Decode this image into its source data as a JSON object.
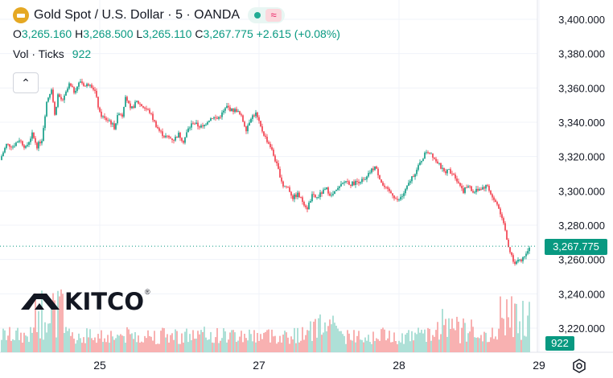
{
  "header": {
    "title": "Gold Spot / U.S. Dollar · 5 · OANDA",
    "ohlc": [
      {
        "k": "O",
        "v": "3,265.160"
      },
      {
        "k": "H",
        "v": "3,268.500"
      },
      {
        "k": "L",
        "v": "3,265.110"
      },
      {
        "k": "C",
        "v": "3,267.775"
      }
    ],
    "change": "+2.615 (+0.08%)",
    "volume_label": "Vol · Ticks",
    "volume_value": "922"
  },
  "price_tag": "3,267.775",
  "volume_tag": "922",
  "logo": {
    "text": "KITCO",
    "mark": "®"
  },
  "colors": {
    "up": "#089981",
    "down": "#f23645",
    "vol_up": "#a6dcd3",
    "vol_down": "#f7a9a9",
    "grid": "#f0f3fa",
    "text": "#131722"
  },
  "chart_data": {
    "type": "candlestick",
    "y_axis": {
      "ticks": [
        "3,220.000",
        "3,240.000",
        "3,260.000",
        "3,280.000",
        "3,300.000",
        "3,320.000",
        "3,340.000",
        "3,360.000",
        "3,380.000",
        "3,400.000"
      ],
      "range": [
        3210,
        3405
      ]
    },
    "x_axis": {
      "ticks": [
        "25",
        "27",
        "28",
        "29"
      ]
    },
    "last_price": 3267.775,
    "price_path": [
      [
        0,
        3318
      ],
      [
        8,
        3327
      ],
      [
        16,
        3326
      ],
      [
        24,
        3330
      ],
      [
        32,
        3325
      ],
      [
        40,
        3333
      ],
      [
        46,
        3326
      ],
      [
        52,
        3330
      ],
      [
        58,
        3352
      ],
      [
        64,
        3360
      ],
      [
        68,
        3344
      ],
      [
        72,
        3356
      ],
      [
        78,
        3352
      ],
      [
        86,
        3362
      ],
      [
        92,
        3358
      ],
      [
        100,
        3364
      ],
      [
        106,
        3361
      ],
      [
        112,
        3363
      ],
      [
        118,
        3358
      ],
      [
        124,
        3345
      ],
      [
        130,
        3342
      ],
      [
        136,
        3341
      ],
      [
        142,
        3337
      ],
      [
        148,
        3346
      ],
      [
        152,
        3344
      ],
      [
        156,
        3356
      ],
      [
        162,
        3347
      ],
      [
        170,
        3352
      ],
      [
        178,
        3349
      ],
      [
        186,
        3346
      ],
      [
        192,
        3340
      ],
      [
        198,
        3335
      ],
      [
        204,
        3332
      ],
      [
        210,
        3331
      ],
      [
        216,
        3330
      ],
      [
        222,
        3333
      ],
      [
        228,
        3329
      ],
      [
        234,
        3336
      ],
      [
        240,
        3340
      ],
      [
        246,
        3338
      ],
      [
        252,
        3337
      ],
      [
        258,
        3341
      ],
      [
        264,
        3343
      ],
      [
        270,
        3342
      ],
      [
        276,
        3345
      ],
      [
        282,
        3349
      ],
      [
        288,
        3347
      ],
      [
        294,
        3347
      ],
      [
        300,
        3343
      ],
      [
        306,
        3336
      ],
      [
        312,
        3343
      ],
      [
        318,
        3345
      ],
      [
        324,
        3337
      ],
      [
        330,
        3331
      ],
      [
        336,
        3326
      ],
      [
        342,
        3318
      ],
      [
        348,
        3309
      ],
      [
        352,
        3303
      ],
      [
        358,
        3302
      ],
      [
        364,
        3296
      ],
      [
        370,
        3298
      ],
      [
        376,
        3294
      ],
      [
        382,
        3290
      ],
      [
        388,
        3297
      ],
      [
        394,
        3296
      ],
      [
        400,
        3299
      ],
      [
        406,
        3301
      ],
      [
        412,
        3297
      ],
      [
        418,
        3300
      ],
      [
        424,
        3303
      ],
      [
        430,
        3306
      ],
      [
        436,
        3304
      ],
      [
        442,
        3305
      ],
      [
        448,
        3306
      ],
      [
        454,
        3306
      ],
      [
        460,
        3311
      ],
      [
        466,
        3314
      ],
      [
        470,
        3310
      ],
      [
        476,
        3303
      ],
      [
        482,
        3300
      ],
      [
        488,
        3298
      ],
      [
        494,
        3294
      ],
      [
        500,
        3297
      ],
      [
        506,
        3302
      ],
      [
        512,
        3308
      ],
      [
        518,
        3312
      ],
      [
        524,
        3318
      ],
      [
        530,
        3323
      ],
      [
        536,
        3322
      ],
      [
        540,
        3319
      ],
      [
        546,
        3315
      ],
      [
        552,
        3311
      ],
      [
        558,
        3312
      ],
      [
        564,
        3310
      ],
      [
        570,
        3305
      ],
      [
        576,
        3300
      ],
      [
        582,
        3303
      ],
      [
        588,
        3299
      ],
      [
        594,
        3301
      ],
      [
        600,
        3302
      ],
      [
        606,
        3303
      ],
      [
        612,
        3296
      ],
      [
        618,
        3292
      ],
      [
        624,
        3285
      ],
      [
        628,
        3278
      ],
      [
        632,
        3266
      ],
      [
        636,
        3262
      ],
      [
        640,
        3257
      ],
      [
        644,
        3261
      ],
      [
        648,
        3259
      ],
      [
        652,
        3263
      ],
      [
        656,
        3266
      ],
      [
        660,
        3267.775
      ]
    ]
  }
}
